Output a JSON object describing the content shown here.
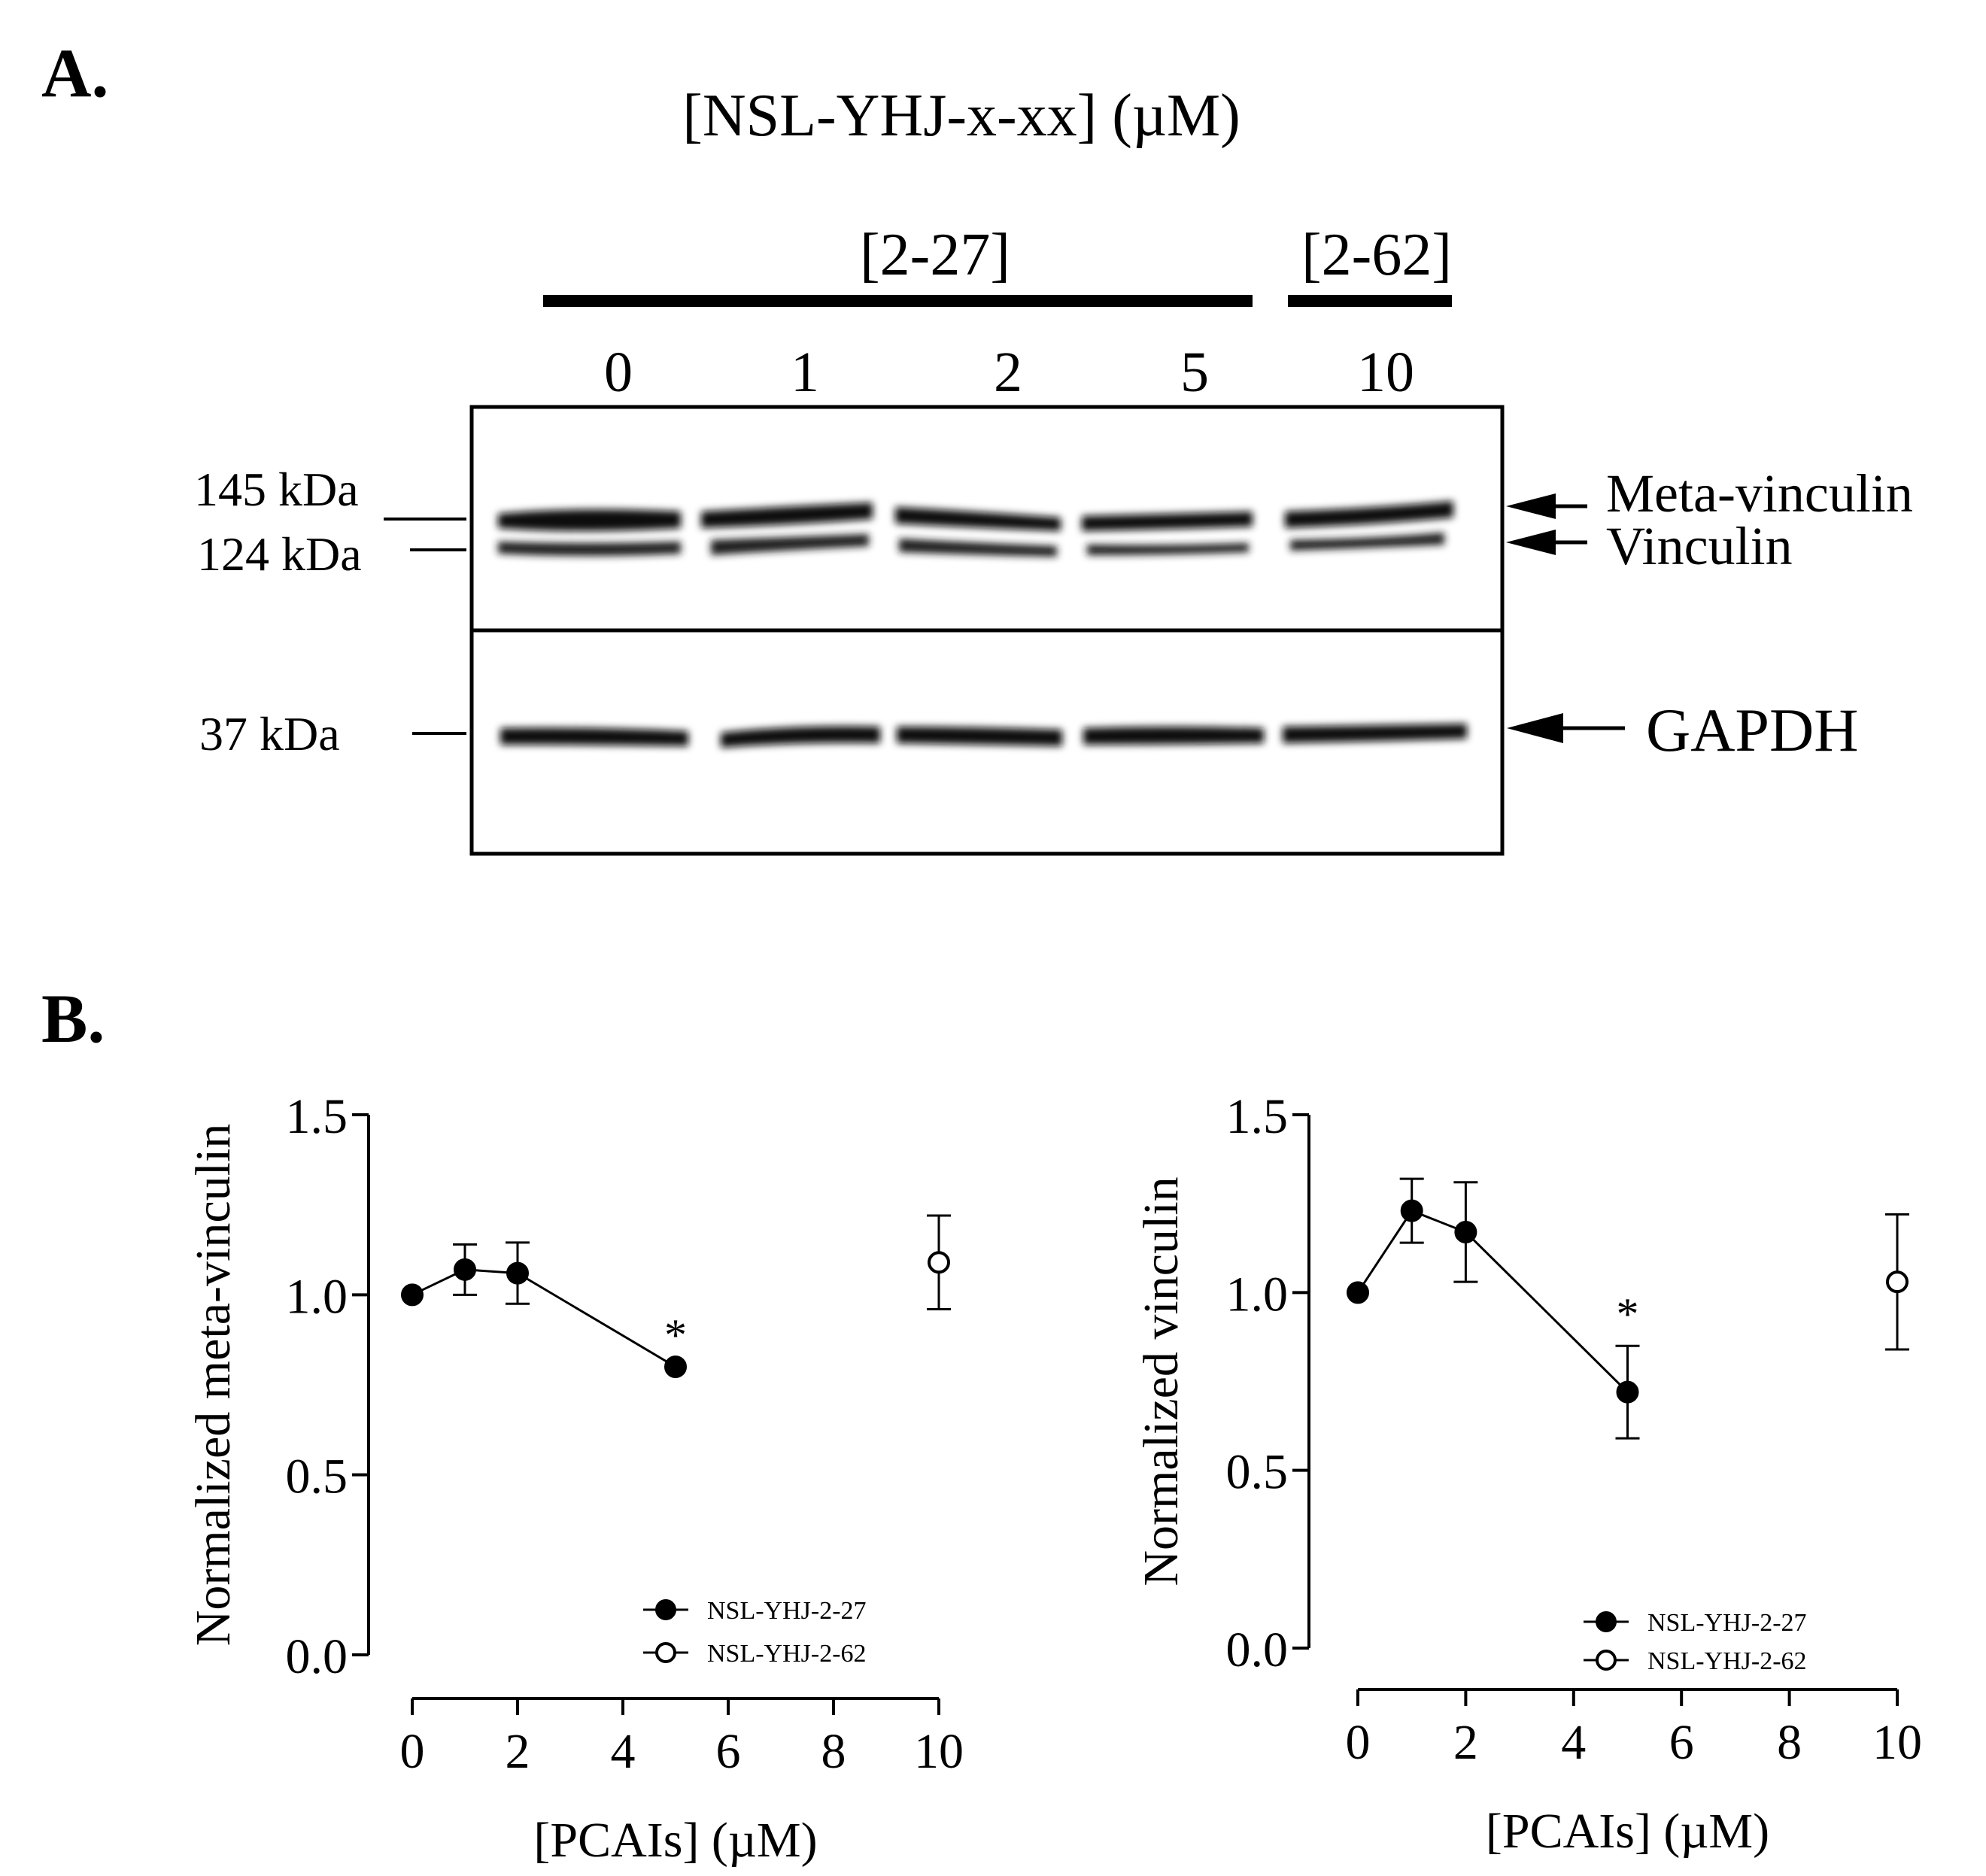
{
  "panel_a": {
    "label": "A.",
    "title": "[NSL-YHJ-x-xx]  (µM)",
    "groups": [
      {
        "label": "[2-27]",
        "lanes": [
          "0",
          "1",
          "2",
          "5"
        ]
      },
      {
        "label": "[2-62]",
        "lanes": [
          "10"
        ]
      }
    ],
    "markers": [
      "145 kDa",
      "124 kDa",
      "37 kDa"
    ],
    "bands": [
      "Meta-vinculin",
      "Vinculin",
      "GAPDH"
    ]
  },
  "panel_b": {
    "label": "B."
  },
  "chart_data": [
    {
      "type": "scatter",
      "ylabel": "Normalized meta-vinculin",
      "xlabel": "[PCAIs] (µM)",
      "xlim": [
        0,
        10
      ],
      "ylim": [
        0,
        1.5
      ],
      "xticks": [
        "0",
        "2",
        "4",
        "6",
        "8",
        "10"
      ],
      "yticks": [
        "0.0",
        "0.5",
        "1.0",
        "1.5"
      ],
      "series": [
        {
          "name": "NSL-YHJ-2-27",
          "marker": "filled-circle",
          "line": true,
          "x": [
            0,
            1,
            2,
            5
          ],
          "y": [
            1.0,
            1.07,
            1.06,
            0.8
          ],
          "err": [
            0,
            0.07,
            0.085,
            0
          ]
        },
        {
          "name": "NSL-YHJ-2-62",
          "marker": "open-circle",
          "line": false,
          "x": [
            10
          ],
          "y": [
            1.09
          ],
          "err": [
            0.13
          ]
        }
      ],
      "annotations": [
        {
          "text": "*",
          "x": 5
        }
      ],
      "legend": "bottom-right"
    },
    {
      "type": "scatter",
      "ylabel": "Normalized vinculin",
      "xlabel": "[PCAIs] (µM)",
      "xlim": [
        0,
        10
      ],
      "ylim": [
        0,
        1.5
      ],
      "xticks": [
        "0",
        "2",
        "4",
        "6",
        "8",
        "10"
      ],
      "yticks": [
        "0.0",
        "0.5",
        "1.0",
        "1.5"
      ],
      "series": [
        {
          "name": "NSL-YHJ-2-27",
          "marker": "filled-circle",
          "line": true,
          "x": [
            0,
            1,
            2,
            5
          ],
          "y": [
            1.0,
            1.23,
            1.17,
            0.72
          ],
          "err": [
            0,
            0.09,
            0.14,
            0.13
          ]
        },
        {
          "name": "NSL-YHJ-2-62",
          "marker": "open-circle",
          "line": false,
          "x": [
            10
          ],
          "y": [
            1.03
          ],
          "err": [
            0.19
          ]
        }
      ],
      "annotations": [
        {
          "text": "*",
          "x": 5
        }
      ],
      "legend": "bottom-right"
    }
  ]
}
